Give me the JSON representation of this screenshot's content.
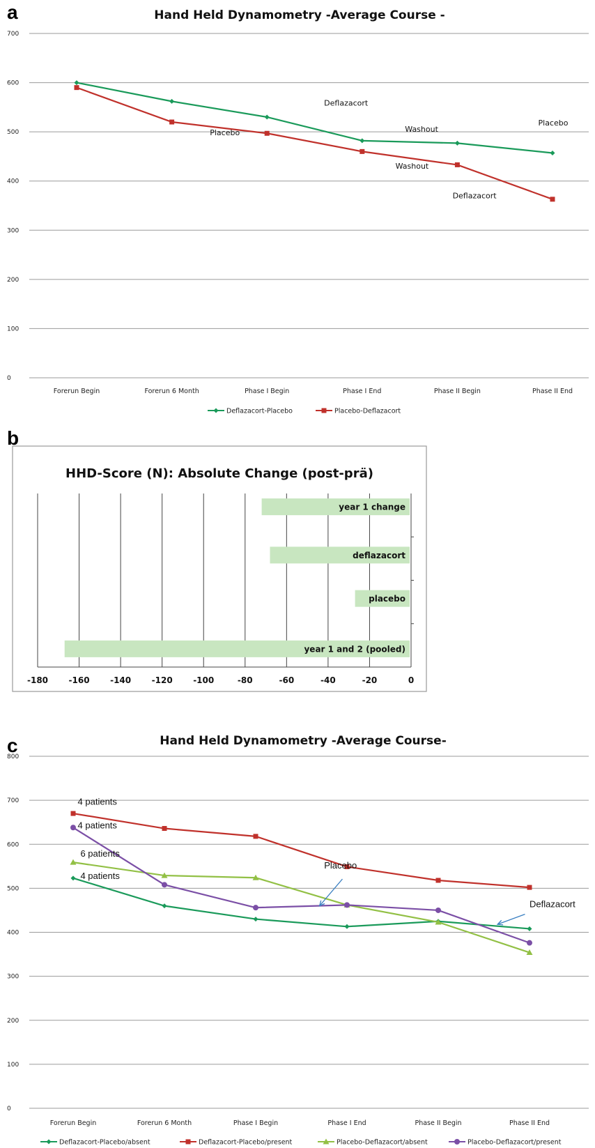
{
  "panel_labels": {
    "a": "a",
    "b": "b",
    "c": "c"
  },
  "chart_data": [
    {
      "type": "line",
      "panel": "a",
      "title": "Hand Held Dynamometry   -Average Course -",
      "categories": [
        "Forerun Begin",
        "Forerun 6 Month",
        "Phase I Begin",
        "Phase I End",
        "Phase II Begin",
        "Phase II  End"
      ],
      "series": [
        {
          "name": "Deflazacort-Placebo",
          "color": "#1a9a5a",
          "marker": "diamond",
          "values": [
            600,
            562,
            530,
            482,
            477,
            457
          ]
        },
        {
          "name": "Placebo-Deflazacort",
          "color": "#c0312b",
          "marker": "square",
          "values": [
            590,
            520,
            497,
            460,
            433,
            363
          ]
        }
      ],
      "ylim": [
        0,
        700
      ],
      "yticks": [
        0,
        100,
        200,
        300,
        400,
        500,
        600,
        700
      ],
      "grid": true,
      "legend_position": "bottom",
      "annotations": [
        {
          "text": "Deflazacort",
          "x": 2.6,
          "y": 553
        },
        {
          "text": "Washout",
          "x": 3.45,
          "y": 500
        },
        {
          "text": "Placebo",
          "x": 4.85,
          "y": 513
        },
        {
          "text": "Placebo",
          "x": 1.4,
          "y": 493
        },
        {
          "text": "Washout",
          "x": 3.35,
          "y": 425
        },
        {
          "text": "Deflazacort",
          "x": 3.95,
          "y": 365
        }
      ]
    },
    {
      "type": "bar",
      "panel": "b",
      "orientation": "horizontal",
      "title": "HHD-Score (N): Absolute Change (post-prä)",
      "categories": [
        "year 1 change",
        "deflazacort",
        "placebo",
        "year 1 and 2 (pooled)"
      ],
      "values": [
        -72,
        -68,
        -27,
        -167
      ],
      "xlim": [
        -180,
        0
      ],
      "xticks": [
        -180,
        -160,
        -140,
        -120,
        -100,
        -80,
        -60,
        -40,
        -20,
        0
      ],
      "bar_color": "#c8e6c0",
      "grid": true
    },
    {
      "type": "line",
      "panel": "c",
      "title": "Hand Held Dynamometry  -Average Course-",
      "categories": [
        "Forerun Begin",
        "Forerun 6 Month",
        "Phase I Begin",
        "Phase I End",
        "Phase II Begin",
        "Phase II  End"
      ],
      "series": [
        {
          "name": "Deflazacort-Placebo/absent",
          "color": "#1a9a5a",
          "marker": "diamond",
          "values": [
            523,
            460,
            430,
            413,
            425,
            408
          ]
        },
        {
          "name": "Deflazacort-Placebo/present",
          "color": "#c0312b",
          "marker": "square",
          "values": [
            670,
            636,
            618,
            549,
            518,
            502
          ]
        },
        {
          "name": "Placebo-Deflazacort/absent",
          "color": "#92c045",
          "marker": "triangle",
          "values": [
            559,
            529,
            524,
            462,
            423,
            354
          ]
        },
        {
          "name": "Placebo-Deflazacort/present",
          "color": "#7b4fa6",
          "marker": "circle",
          "values": [
            638,
            508,
            456,
            462,
            450,
            376
          ]
        }
      ],
      "ylim": [
        0,
        800
      ],
      "yticks": [
        0,
        100,
        200,
        300,
        400,
        500,
        600,
        700,
        800
      ],
      "grid": true,
      "legend_position": "bottom",
      "annotations": [
        {
          "text": "4 patients",
          "x": 0.05,
          "y": 690
        },
        {
          "text": "4 patients",
          "x": 0.05,
          "y": 636
        },
        {
          "text": "6 patients",
          "x": 0.08,
          "y": 572
        },
        {
          "text": "4 patients",
          "x": 0.08,
          "y": 521
        },
        {
          "text": "Placebo",
          "x": 2.75,
          "y": 545
        },
        {
          "text": "Deflazacort",
          "x": 5.0,
          "y": 457
        }
      ],
      "arrows": [
        {
          "from": [
            2.95,
            521
          ],
          "to": [
            2.7,
            460
          ]
        },
        {
          "from": [
            4.95,
            441
          ],
          "to": [
            4.65,
            418
          ]
        }
      ]
    }
  ]
}
